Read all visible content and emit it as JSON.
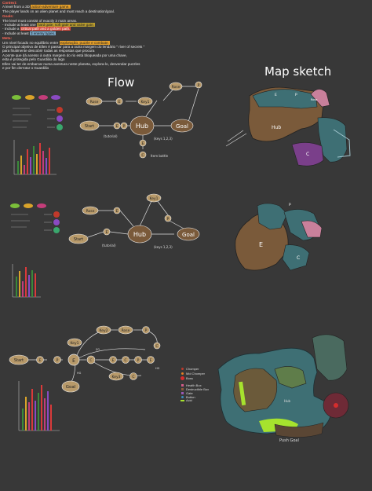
{
  "notes": {
    "context_heading": "Context:",
    "context_line1_pre": "A level from a 3D ",
    "context_line1_hl": "action-adventure game.",
    "context_line2": "The player lands on an alien planet and must reach a destination/goal.",
    "goals_heading": "Goals:",
    "goals_line1": "The level must consist of exactly 3 main areas.",
    "goals_line2_pre": "- Include at least one ",
    "goals_line2_hl": "hard gate, soft gate and valve gate.",
    "goals_line3_pre": "- Include a ",
    "goals_line3_hl": "critical path and a golden path.",
    "goals_line4_pre": "- Include at least ",
    "goals_line4_hl": "3 enemy types.",
    "pt_heading": "Meta:",
    "pt_line1_pre": "Um nível focado no equilíbrio entre ",
    "pt_line1_hl": "exploração, puzzle e combate.",
    "pt_line2": "O principal objetivo de Ellen é passar para a outra margem do lendário \" river of secrets \"",
    "pt_line3": "para finalmente descobrir todas as respostas que procura",
    "pt_line4": "A ponte que dá acesso à outra margem do rio está bloqueada por uma chave,",
    "pt_line5": "esta é protegida pelo Guardião do lago",
    "pt_line6": "Ellen vai ter de embarcar numa aventura neste planeta, explora-lo, desvendar puzzles",
    "pt_line7": "e por fim derrotar o Guardião"
  },
  "titles": {
    "flow": "Flow",
    "map_sketch": "Map sketch"
  },
  "flow_nodes": {
    "start": "Start",
    "hub": "Hub",
    "goal": "Goal",
    "rose": "Rose",
    "key1": "Key1",
    "key2": "Key2",
    "key3": "Key3",
    "tutorial": "(tutorial)",
    "keys": "(keys 1,2,3)",
    "item_battle": "Item battle",
    "e": "E",
    "p": "P",
    "c": "C",
    "sg": "SG",
    "hg": "HG"
  },
  "legend": {
    "items": [
      {
        "name": "Chomper",
        "color": "#c0392b"
      },
      {
        "name": "Mid Chomper",
        "color": "#e67e22"
      },
      {
        "name": "Boss",
        "color": "#d62d2d"
      },
      {
        "name": "Health Box",
        "color": "#d35b8a"
      },
      {
        "name": "Destructible Box",
        "color": "#8e5a3c"
      },
      {
        "name": "Gate",
        "color": "#9b59b6"
      },
      {
        "name": "Button",
        "color": "#3c8dbc"
      },
      {
        "name": "Acid",
        "color": "#a6e22e"
      }
    ]
  },
  "map_labels": {
    "push_goal": "Push Goal",
    "hub": "Hub",
    "start": "Start"
  },
  "colors": {
    "background": "#383838",
    "hub_brown": "#7a5a3a",
    "node_tan": "#b89a6a",
    "node_pink": "#c9809b",
    "node_purple": "#7a3f8a",
    "map_teal": "#3e6f74",
    "acid_green": "#a6e22e"
  }
}
